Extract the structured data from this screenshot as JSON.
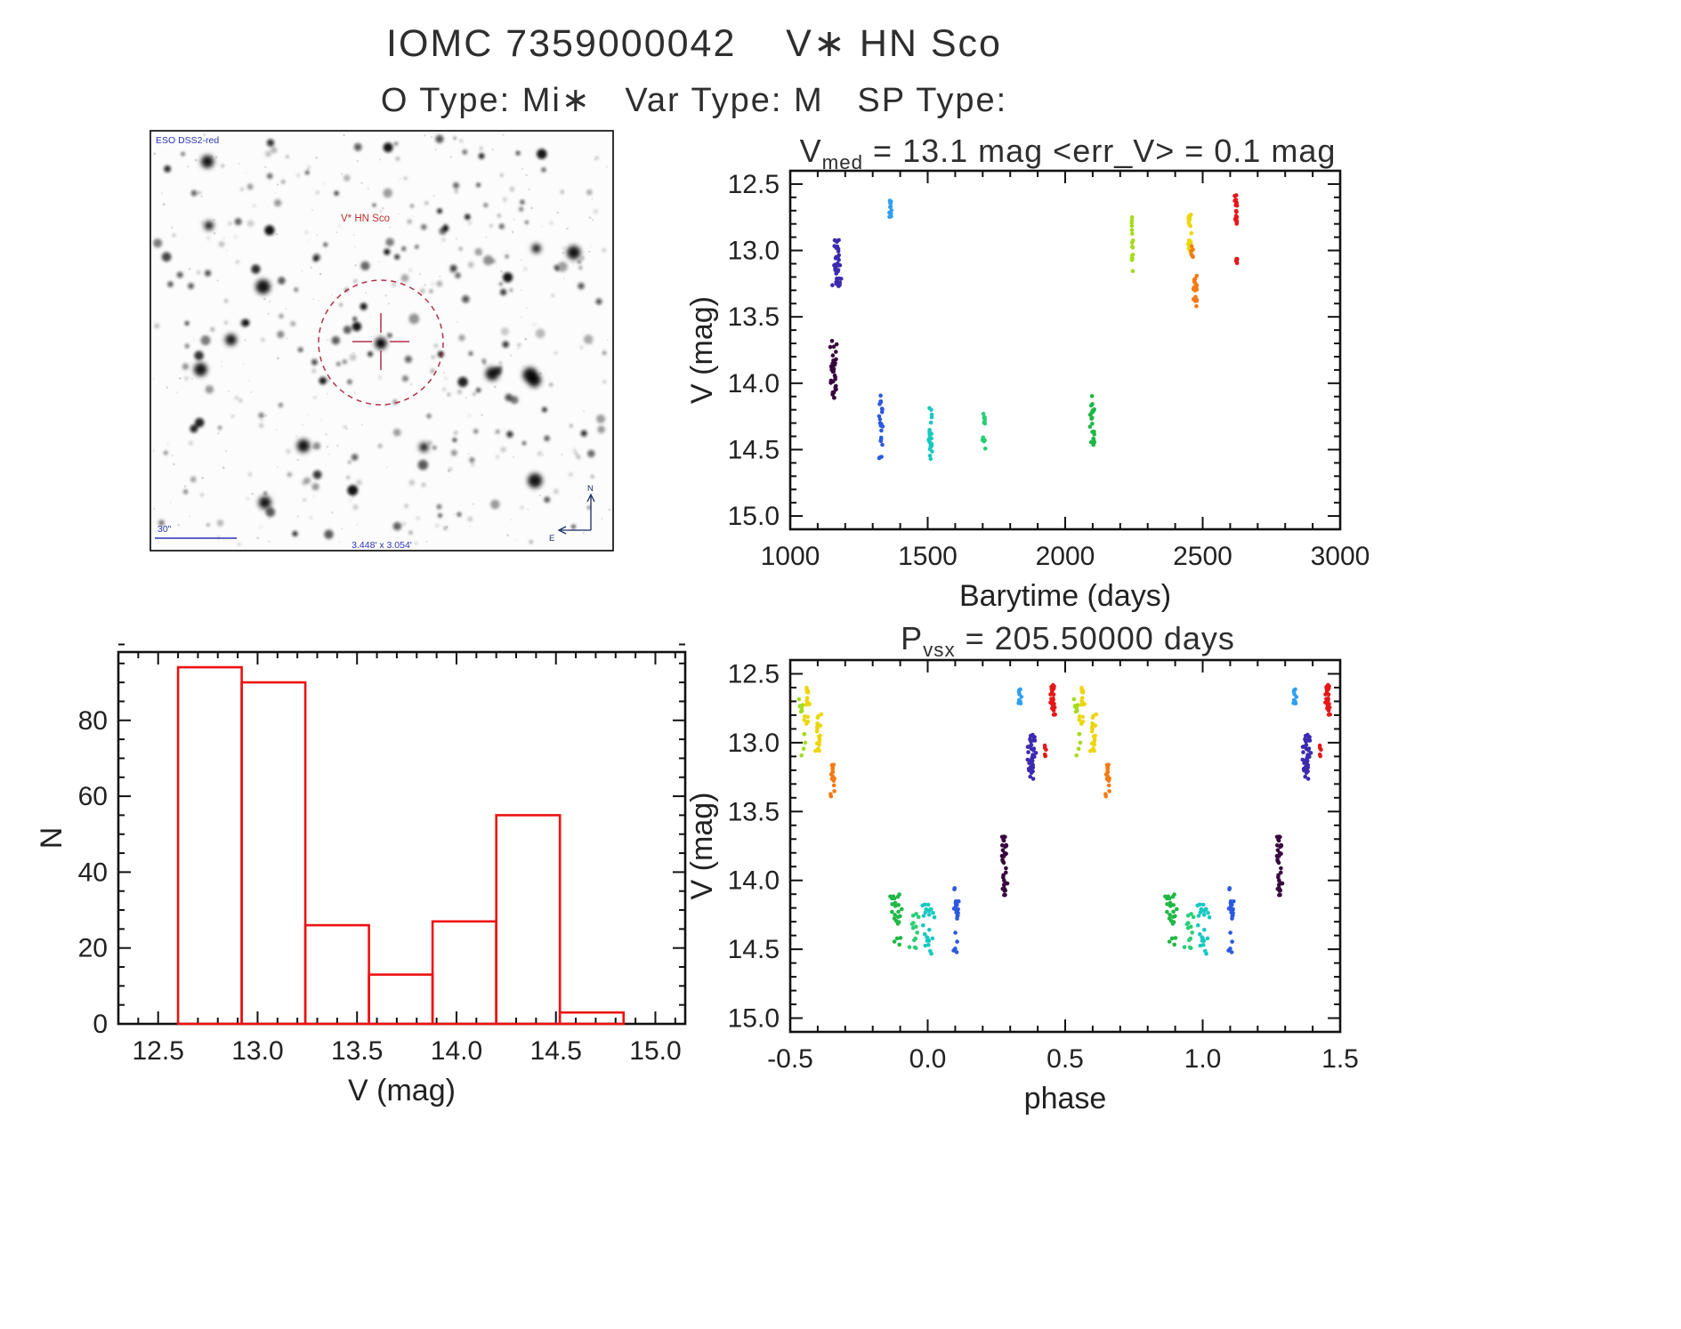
{
  "page": {
    "title": "IOMC 7359000042    V∗ HN Sco",
    "subtitle": "O Type: Mi∗   Var Type: M   SP Type:"
  },
  "finder": {
    "survey_label": "ESO DSS2-red",
    "star_label": "V* HN Sco",
    "scale_label": "30\"",
    "fov_label": "3.448' x 3.054'",
    "compass_n": "N",
    "compass_e": "E",
    "marker_color": "#b03048",
    "annotation_color": "#2a35b5"
  },
  "chart_data": [
    {
      "id": "lightcurve",
      "type": "scatter",
      "title": {
        "base": "V",
        "sub": "med",
        "rest": " = 13.1 mag <err_V> = 0.1 mag"
      },
      "xlabel": "Barytime (days)",
      "ylabel": "V (mag)",
      "xlim": [
        1000,
        3000
      ],
      "ylim": [
        12.4,
        15.1
      ],
      "y_inverted_mag_axis": true,
      "xticks": [
        1000,
        1500,
        2000,
        2500,
        3000
      ],
      "xtick_labels": [
        "1000",
        "1500",
        "2000",
        "2500",
        "3000"
      ],
      "yticks": [
        12.5,
        13.0,
        13.5,
        14.0,
        14.5,
        15.0
      ],
      "ytick_labels": [
        "12.5",
        "13.0",
        "13.5",
        "14.0",
        "14.5",
        "15.0"
      ],
      "x_minor": 100,
      "y_minor": 0.1,
      "clusters": [
        {
          "x": 1170,
          "xs": 18,
          "y0": 12.92,
          "y1": 13.27,
          "n": 42,
          "color": "#3b2bb0"
        },
        {
          "x": 1157,
          "xs": 14,
          "y0": 13.68,
          "y1": 14.12,
          "n": 36,
          "color": "#38073e"
        },
        {
          "x": 1330,
          "xs": 8,
          "y0": 14.05,
          "y1": 14.57,
          "n": 22,
          "color": "#2b59e0"
        },
        {
          "x": 1363,
          "xs": 6,
          "y0": 12.62,
          "y1": 12.78,
          "n": 12,
          "color": "#2e9ff2"
        },
        {
          "x": 1510,
          "xs": 10,
          "y0": 14.17,
          "y1": 14.57,
          "n": 24,
          "color": "#17c9c0"
        },
        {
          "x": 1705,
          "xs": 9,
          "y0": 14.23,
          "y1": 14.5,
          "n": 14,
          "color": "#27cf74"
        },
        {
          "x": 2100,
          "xs": 10,
          "y0": 14.08,
          "y1": 14.47,
          "n": 24,
          "color": "#1eb844"
        },
        {
          "x": 2243,
          "xs": 7,
          "y0": 12.68,
          "y1": 13.16,
          "n": 16,
          "color": "#a4dc1c"
        },
        {
          "x": 2452,
          "xs": 9,
          "y0": 12.72,
          "y1": 13.05,
          "n": 26,
          "color": "#ecd60a"
        },
        {
          "x": 2473,
          "xs": 7,
          "y0": 13.18,
          "y1": 13.42,
          "n": 20,
          "color": "#f47a12"
        },
        {
          "x": 2462,
          "xs": 5,
          "y0": 12.93,
          "y1": 13.08,
          "n": 6,
          "color": "#f47a12"
        },
        {
          "x": 2622,
          "xs": 7,
          "y0": 12.58,
          "y1": 12.8,
          "n": 22,
          "color": "#e61717"
        },
        {
          "x": 2625,
          "xs": 5,
          "y0": 13.02,
          "y1": 13.12,
          "n": 5,
          "color": "#e61717"
        }
      ]
    },
    {
      "id": "histogram",
      "type": "histogram",
      "xlabel": "V (mag)",
      "ylabel": "N",
      "bar_color": "#ee1111",
      "xlim": [
        12.3,
        15.15
      ],
      "ylim": [
        0,
        98
      ],
      "xticks": [
        12.5,
        13.0,
        13.5,
        14.0,
        14.5,
        15.0
      ],
      "xtick_labels": [
        "12.5",
        "13.0",
        "13.5",
        "14.0",
        "14.5",
        "15.0"
      ],
      "yticks": [
        0,
        20,
        40,
        60,
        80
      ],
      "ytick_labels": [
        "0",
        "20",
        "40",
        "60",
        "80"
      ],
      "x_minor": 0.1,
      "y_minor": 5,
      "bin_edges": [
        12.6,
        12.92,
        13.24,
        13.56,
        13.88,
        14.2,
        14.52,
        14.84
      ],
      "counts": [
        94,
        90,
        26,
        13,
        27,
        55,
        3
      ]
    },
    {
      "id": "phase",
      "type": "scatter",
      "title": {
        "base": "P",
        "sub": "vsx",
        "rest": " = 205.50000 days"
      },
      "xlabel": "phase",
      "ylabel": "V (mag)",
      "xlim": [
        -0.5,
        1.5
      ],
      "ylim": [
        12.4,
        15.1
      ],
      "y_inverted_mag_axis": true,
      "duplicate_offset": 1.0,
      "xticks": [
        -0.5,
        0.0,
        0.5,
        1.0,
        1.5
      ],
      "xtick_labels": [
        "-0.5",
        "0.0",
        "0.5",
        "1.0",
        "1.5"
      ],
      "yticks": [
        12.5,
        13.0,
        13.5,
        14.0,
        14.5,
        15.0
      ],
      "ytick_labels": [
        "12.5",
        "13.0",
        "13.5",
        "14.0",
        "14.5",
        "15.0"
      ],
      "x_minor": 0.1,
      "y_minor": 0.1,
      "clusters": [
        {
          "x": -0.46,
          "xs": 0.012,
          "y0": 12.64,
          "y1": 12.8,
          "n": 10,
          "color": "#a4dc1c"
        },
        {
          "x": -0.452,
          "xs": 0.01,
          "y0": 12.9,
          "y1": 13.16,
          "n": 5,
          "color": "#a4dc1c"
        },
        {
          "x": -0.438,
          "xs": 0.012,
          "y0": 12.6,
          "y1": 12.88,
          "n": 18,
          "color": "#ecd60a"
        },
        {
          "x": -0.398,
          "xs": 0.012,
          "y0": 12.78,
          "y1": 13.06,
          "n": 18,
          "color": "#ecd60a"
        },
        {
          "x": -0.345,
          "xs": 0.012,
          "y0": 13.16,
          "y1": 13.42,
          "n": 18,
          "color": "#f47a12"
        },
        {
          "x": -0.115,
          "xs": 0.03,
          "y0": 14.08,
          "y1": 14.47,
          "n": 24,
          "color": "#1eb844"
        },
        {
          "x": -0.05,
          "xs": 0.02,
          "y0": 14.23,
          "y1": 14.5,
          "n": 13,
          "color": "#27cf74"
        },
        {
          "x": 0.005,
          "xs": 0.025,
          "y0": 14.17,
          "y1": 14.57,
          "n": 24,
          "color": "#17c9c0"
        },
        {
          "x": 0.105,
          "xs": 0.014,
          "y0": 14.05,
          "y1": 14.57,
          "n": 20,
          "color": "#2b59e0"
        },
        {
          "x": 0.28,
          "xs": 0.012,
          "y0": 13.68,
          "y1": 14.12,
          "n": 34,
          "color": "#38073e"
        },
        {
          "x": 0.335,
          "xs": 0.008,
          "y0": 12.6,
          "y1": 12.76,
          "n": 11,
          "color": "#2e9ff2"
        },
        {
          "x": 0.378,
          "xs": 0.018,
          "y0": 12.92,
          "y1": 13.27,
          "n": 40,
          "color": "#3b2bb0"
        },
        {
          "x": 0.425,
          "xs": 0.008,
          "y0": 13.02,
          "y1": 13.14,
          "n": 5,
          "color": "#e61717"
        },
        {
          "x": 0.455,
          "xs": 0.01,
          "y0": 12.58,
          "y1": 12.8,
          "n": 22,
          "color": "#e61717"
        }
      ]
    }
  ]
}
